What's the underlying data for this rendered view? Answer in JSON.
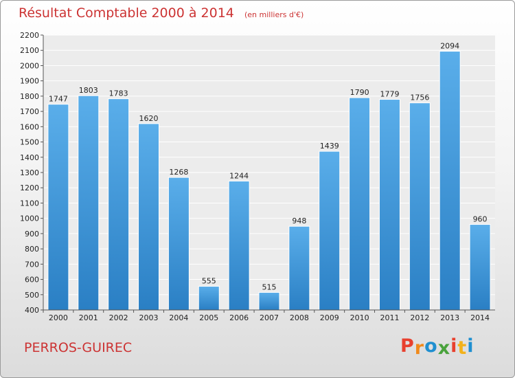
{
  "chart_data": {
    "type": "bar",
    "title": "Résultat Comptable 2000 à 2014",
    "subtitle": "(en milliers d'€)",
    "categories": [
      "2000",
      "2001",
      "2002",
      "2003",
      "2004",
      "2005",
      "2006",
      "2007",
      "2008",
      "2009",
      "2010",
      "2011",
      "2012",
      "2013",
      "2014"
    ],
    "values": [
      1747,
      1803,
      1783,
      1620,
      1268,
      555,
      1244,
      515,
      948,
      1439,
      1790,
      1779,
      1756,
      2094,
      960
    ],
    "ylim": [
      400,
      2200
    ],
    "yticks": [
      400,
      500,
      600,
      700,
      800,
      900,
      1000,
      1100,
      1200,
      1300,
      1400,
      1500,
      1600,
      1700,
      1800,
      1900,
      2000,
      2100,
      2200
    ],
    "xlabel": "",
    "ylabel": "",
    "grid": true,
    "bar_color": "#3b8fd6"
  },
  "footer": {
    "city": "PERROS-GUIREC",
    "logo_text": "Proxiti"
  },
  "colors": {
    "title": "#cc3333",
    "logo": [
      "#e8402e",
      "#f08a1c",
      "#1f8fd0",
      "#49a23c",
      "#e8402e",
      "#f3b21b",
      "#1f8fd0"
    ]
  }
}
